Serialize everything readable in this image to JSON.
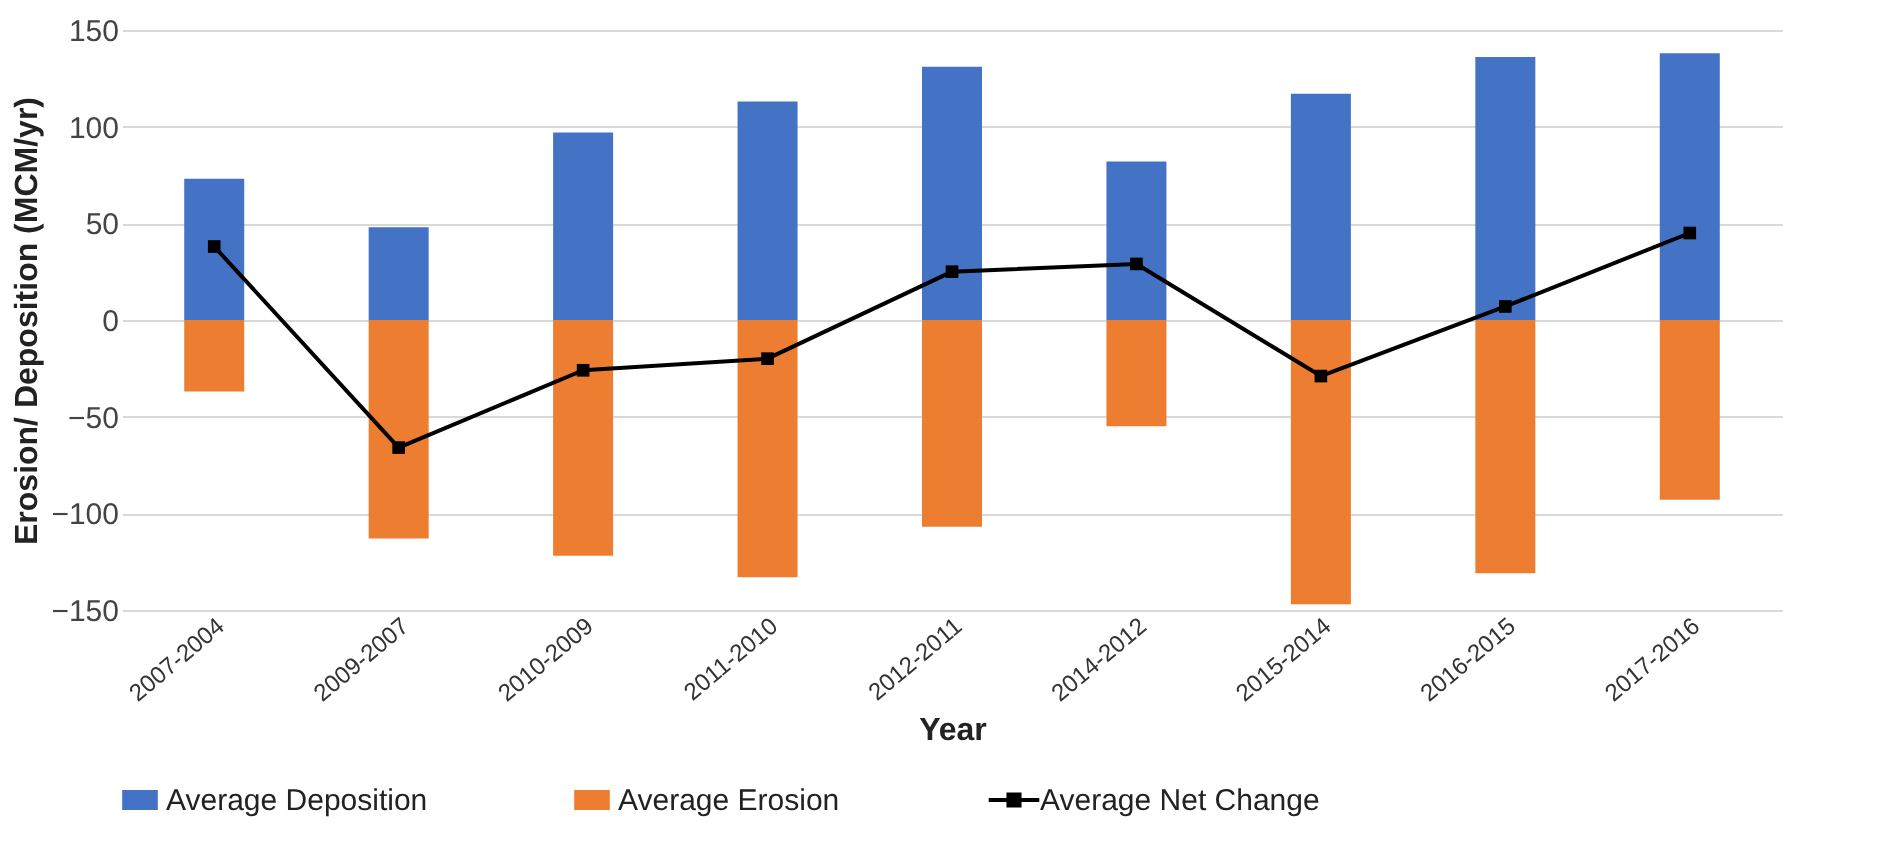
{
  "chart_data": {
    "type": "bar",
    "stacked": true,
    "xlabel": "Year",
    "ylabel": "Erosion/ Deposition (MCM/yr)",
    "categories": [
      "2007-2004",
      "2009-2007",
      "2010-2009",
      "2011-2010",
      "2012-2011",
      "2014-2012",
      "2015-2014",
      "2016-2015",
      "2017-2016"
    ],
    "series": [
      {
        "name": "Average Deposition",
        "color": "#4472c4",
        "values": [
          73,
          48,
          97,
          113,
          131,
          82,
          117,
          136,
          138
        ]
      },
      {
        "name": "Average Erosion",
        "color": "#ed7d31",
        "values": [
          -37,
          -113,
          -122,
          -133,
          -107,
          -55,
          -147,
          -131,
          -93
        ]
      },
      {
        "name": "Average Net Change",
        "type": "line",
        "color": "#000000",
        "marker": "square",
        "values": [
          38,
          -66,
          -26,
          -20,
          25,
          29,
          -29,
          7,
          45
        ]
      }
    ],
    "ylim": [
      -150,
      150
    ],
    "yticks": [
      -150,
      -100,
      -50,
      0,
      50,
      100,
      150
    ],
    "grid": "y",
    "legend": "bottom"
  }
}
